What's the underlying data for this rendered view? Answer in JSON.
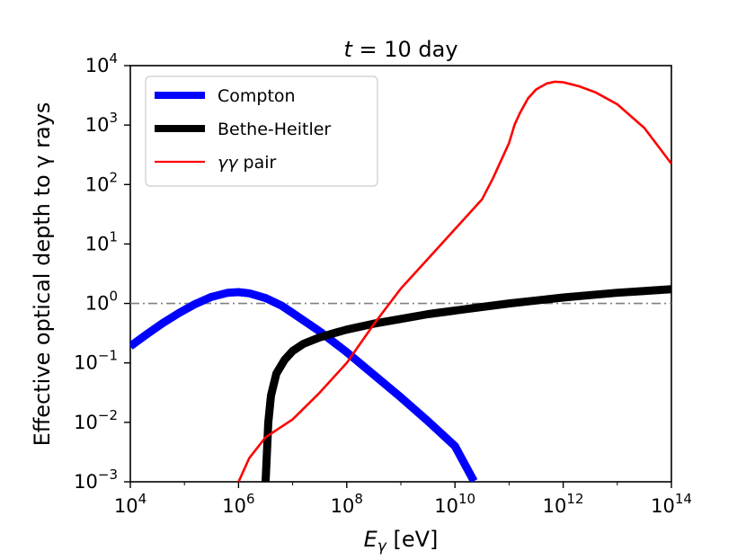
{
  "chart_data": {
    "type": "line",
    "title": "t = 10 day",
    "title_parts": {
      "var": "t",
      "rest": " = 10 day"
    },
    "xlabel": "E_γ [eV]",
    "xlabel_parts": {
      "var": "E",
      "sub": "γ",
      "rest": " [eV]"
    },
    "ylabel": "Effective optical depth to γ rays",
    "x_scale": "log",
    "y_scale": "log",
    "xlim_log10": [
      4,
      14
    ],
    "ylim_log10": [
      -3,
      4
    ],
    "x_ticks": [
      {
        "base": "10",
        "exp": "4",
        "log10": 4
      },
      {
        "base": "10",
        "exp": "6",
        "log10": 6
      },
      {
        "base": "10",
        "exp": "8",
        "log10": 8
      },
      {
        "base": "10",
        "exp": "10",
        "log10": 10
      },
      {
        "base": "10",
        "exp": "12",
        "log10": 12
      },
      {
        "base": "10",
        "exp": "14",
        "log10": 14
      }
    ],
    "y_ticks": [
      {
        "base": "10",
        "exp": "−3",
        "log10": -3
      },
      {
        "base": "10",
        "exp": "−2",
        "log10": -2
      },
      {
        "base": "10",
        "exp": "−1",
        "log10": -1
      },
      {
        "base": "10",
        "exp": "0",
        "log10": 0
      },
      {
        "base": "10",
        "exp": "1",
        "log10": 1
      },
      {
        "base": "10",
        "exp": "2",
        "log10": 2
      },
      {
        "base": "10",
        "exp": "3",
        "log10": 3
      },
      {
        "base": "10",
        "exp": "4",
        "log10": 4
      }
    ],
    "reference_line": {
      "y_log10": 0,
      "style": "dash-dot",
      "color": "#808080"
    },
    "legend_position": "upper-left",
    "series": [
      {
        "name": "Compton",
        "color": "#0000ff",
        "weight": "heavy",
        "log10_x": [
          4.0,
          4.3,
          4.6,
          4.9,
          5.2,
          5.5,
          5.8,
          6.0,
          6.2,
          6.5,
          6.8,
          7.0,
          7.5,
          8.0,
          8.5,
          9.0,
          9.5,
          10.0,
          10.35
        ],
        "log10_y": [
          -0.72,
          -0.52,
          -0.33,
          -0.16,
          -0.01,
          0.11,
          0.18,
          0.19,
          0.17,
          0.09,
          -0.04,
          -0.16,
          -0.47,
          -0.82,
          -1.2,
          -1.58,
          -1.98,
          -2.4,
          -2.99
        ]
      },
      {
        "name": "Bethe-Heitler",
        "color": "#000000",
        "weight": "heavy",
        "log10_x": [
          6.5,
          6.52,
          6.55,
          6.6,
          6.7,
          6.85,
          7.0,
          7.2,
          7.5,
          7.8,
          8.0,
          8.5,
          9.0,
          9.5,
          10.0,
          10.5,
          11.0,
          11.5,
          12.0,
          12.5,
          13.0,
          13.5,
          14.0
        ],
        "log10_y": [
          -3.0,
          -2.6,
          -2.0,
          -1.55,
          -1.18,
          -0.95,
          -0.8,
          -0.68,
          -0.57,
          -0.49,
          -0.44,
          -0.34,
          -0.26,
          -0.18,
          -0.12,
          -0.06,
          0.0,
          0.05,
          0.1,
          0.14,
          0.18,
          0.21,
          0.24
        ]
      },
      {
        "name": "γγ pair",
        "color": "#ff0000",
        "weight": "thin",
        "log10_x": [
          6.0,
          6.2,
          6.5,
          7.0,
          7.5,
          8.0,
          8.5,
          9.0,
          9.5,
          10.0,
          10.5,
          10.7,
          10.85,
          11.0,
          11.1,
          11.2,
          11.35,
          11.5,
          11.7,
          11.85,
          12.0,
          12.3,
          12.6,
          13.0,
          13.5,
          14.0
        ],
        "log10_y": [
          -3.0,
          -2.6,
          -2.25,
          -1.95,
          -1.5,
          -1.0,
          -0.35,
          0.25,
          0.75,
          1.25,
          1.75,
          2.1,
          2.4,
          2.7,
          3.0,
          3.2,
          3.45,
          3.6,
          3.7,
          3.73,
          3.72,
          3.65,
          3.55,
          3.35,
          2.95,
          2.35
        ]
      }
    ]
  }
}
